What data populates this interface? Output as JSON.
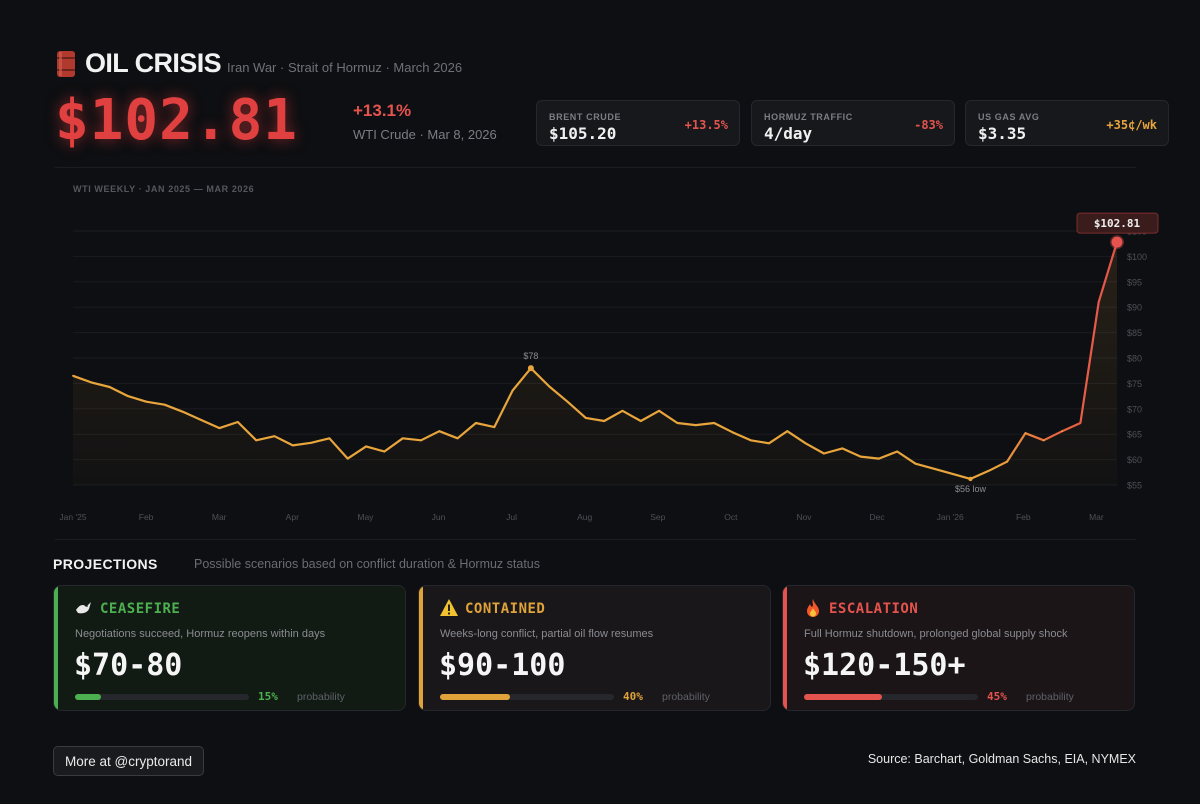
{
  "header": {
    "title": "OIL CRISIS",
    "subtitle": "Iran War · Strait of Hormuz · March 2026",
    "price": "$102.81",
    "change": "+13.1%",
    "price_label": "WTI Crude · Mar 8, 2026"
  },
  "stats": [
    {
      "label": "BRENT CRUDE",
      "value": "$105.20",
      "delta": "+13.5%",
      "delta_color": "#e4534e"
    },
    {
      "label": "HORMUZ TRAFFIC",
      "value": "4/day",
      "delta": "-83%",
      "delta_color": "#e4534e"
    },
    {
      "label": "US GAS AVG",
      "value": "$3.35",
      "delta": "+35¢/wk",
      "delta_color": "#e8a53c"
    }
  ],
  "chart_data": {
    "type": "line",
    "title": "WTI WEEKLY · JAN 2025 — MAR 2026",
    "xlabel": "",
    "ylabel": "",
    "x_ticks": [
      "Jan '25",
      "Feb",
      "Mar",
      "Apr",
      "May",
      "Jun",
      "Jul",
      "Aug",
      "Sep",
      "Oct",
      "Nov",
      "Dec",
      "Jan '26",
      "Feb",
      "Mar"
    ],
    "y_ticks": [
      "$55",
      "$60",
      "$65",
      "$70",
      "$75",
      "$80",
      "$85",
      "$90",
      "$95",
      "$100",
      "$105"
    ],
    "ylim": [
      55,
      105
    ],
    "grid": true,
    "series": [
      {
        "values": [
          76.5,
          75.2,
          74.3,
          72.5,
          71.4,
          70.8,
          69.4,
          67.8,
          66.2,
          67.4,
          63.8,
          64.6,
          62.8,
          63.3,
          64.2,
          60.2,
          62.6,
          61.6,
          64.2,
          63.8,
          65.6,
          64.2,
          67.2,
          66.4,
          73.6,
          78.0,
          74.4,
          71.4,
          68.2,
          67.6,
          69.6,
          67.6,
          69.6,
          67.2,
          66.8,
          67.2,
          65.4,
          63.8,
          63.2,
          65.6,
          63.2,
          61.2,
          62.2,
          60.6,
          60.2,
          61.6,
          59.2,
          58.2,
          57.2,
          56.2,
          57.8,
          59.6,
          65.2,
          63.8,
          65.6,
          67.2,
          91.0,
          102.81
        ]
      }
    ],
    "annotations": [
      {
        "label": "$78",
        "value": 78.0
      },
      {
        "label": "$56 low",
        "value": 56.2
      },
      {
        "label": "$102.81",
        "value": 102.81
      }
    ]
  },
  "projections": {
    "title": "PROJECTIONS",
    "subtitle": "Possible scenarios based on conflict duration & Hormuz status",
    "prob_label": "probability",
    "cards": [
      {
        "name": "CEASEFIRE",
        "icon": "dove-icon",
        "desc": "Negotiations succeed, Hormuz reopens within days",
        "range": "$70-80",
        "pct": "15%",
        "prob": 0.15,
        "color": "#4caf50",
        "bg": "#121a14"
      },
      {
        "name": "CONTAINED",
        "icon": "warning-icon",
        "desc": "Weeks-long conflict, partial oil flow resumes",
        "range": "$90-100",
        "pct": "40%",
        "prob": 0.4,
        "color": "#e0a33a",
        "bg": "#19171a"
      },
      {
        "name": "ESCALATION",
        "icon": "fire-icon",
        "desc": "Full Hormuz shutdown, prolonged global supply shock",
        "range": "$120-150+",
        "pct": "45%",
        "prob": 0.45,
        "color": "#e4534e",
        "bg": "#1b1517"
      }
    ]
  },
  "footer": {
    "more": "More at @cryptorand",
    "source": "Source: Barchart, Goldman Sachs, EIA, NYMEX"
  }
}
